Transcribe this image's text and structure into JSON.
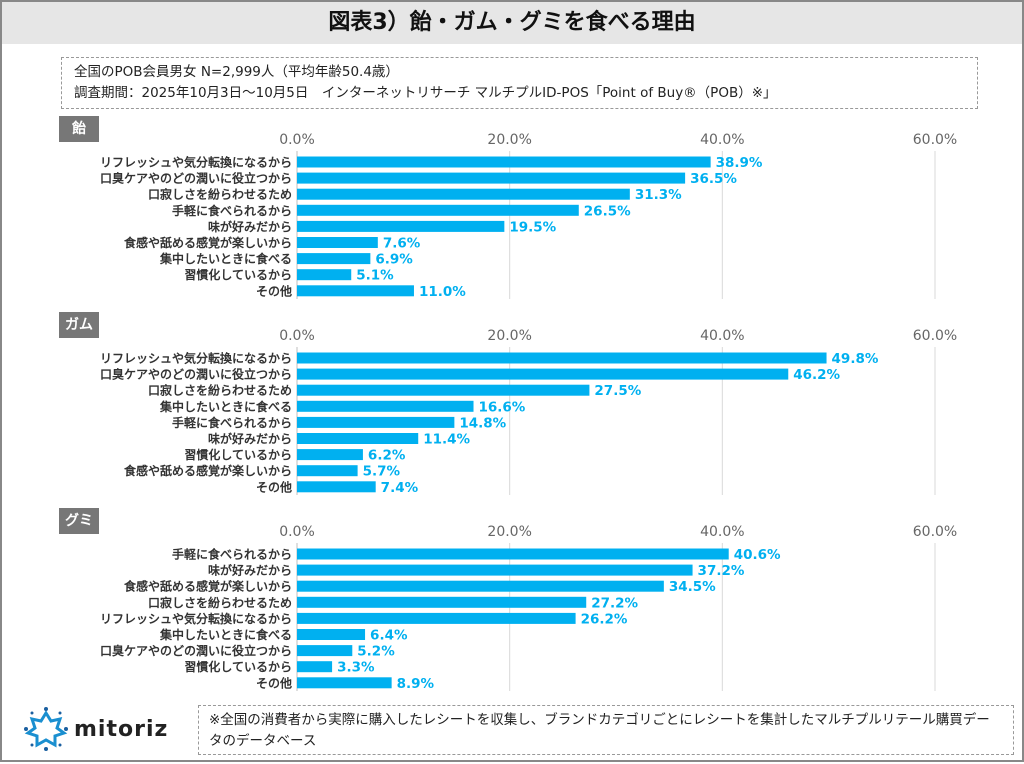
{
  "title": "図表3）飴・ガム・グミを食べる理由",
  "info": {
    "line1": "全国のPOB会員男女 N=2,999人（平均年齢50.4歳）",
    "line2": "調査期間：2025年10月3日～10月5日　インターネットリサーチ マルチプルID-POS「Point of Buy®（POB）※」"
  },
  "footer": {
    "logo": "mitoriz",
    "note": "※全国の消費者から実際に購入したレシートを収集し、ブランドカテゴリごとにレシートを集計したマルチプルリテール購買データのデータベース"
  },
  "colors": {
    "bar": "#00b0f0",
    "label": "#00b0f0",
    "tag": "#777777"
  },
  "chart_data": [
    {
      "type": "bar",
      "orientation": "horizontal",
      "title": "飴",
      "xlim": [
        0,
        60
      ],
      "ticks": [
        "0.0%",
        "20.0%",
        "40.0%",
        "60.0%"
      ],
      "grid": true,
      "categories": [
        "リフレッシュや気分転換になるから",
        "口臭ケアやのどの潤いに役立つから",
        "口寂しさを紛らわせるため",
        "手軽に食べられるから",
        "味が好みだから",
        "食感や舐める感覚が楽しいから",
        "集中したいときに食べる",
        "習慣化しているから",
        "その他"
      ],
      "values": [
        38.9,
        36.5,
        31.3,
        26.5,
        19.5,
        7.6,
        6.9,
        5.1,
        11.0
      ]
    },
    {
      "type": "bar",
      "orientation": "horizontal",
      "title": "ガム",
      "xlim": [
        0,
        60
      ],
      "ticks": [
        "0.0%",
        "20.0%",
        "40.0%",
        "60.0%"
      ],
      "grid": true,
      "categories": [
        "リフレッシュや気分転換になるから",
        "口臭ケアやのどの潤いに役立つから",
        "口寂しさを紛らわせるため",
        "集中したいときに食べる",
        "手軽に食べられるから",
        "味が好みだから",
        "習慣化しているから",
        "食感や舐める感覚が楽しいから",
        "その他"
      ],
      "values": [
        49.8,
        46.2,
        27.5,
        16.6,
        14.8,
        11.4,
        6.2,
        5.7,
        7.4
      ]
    },
    {
      "type": "bar",
      "orientation": "horizontal",
      "title": "グミ",
      "xlim": [
        0,
        60
      ],
      "ticks": [
        "0.0%",
        "20.0%",
        "40.0%",
        "60.0%"
      ],
      "grid": true,
      "categories": [
        "手軽に食べられるから",
        "味が好みだから",
        "食感や舐める感覚が楽しいから",
        "口寂しさを紛らわせるため",
        "リフレッシュや気分転換になるから",
        "集中したいときに食べる",
        "口臭ケアやのどの潤いに役立つから",
        "習慣化しているから",
        "その他"
      ],
      "values": [
        40.6,
        37.2,
        34.5,
        27.2,
        26.2,
        6.4,
        5.2,
        3.3,
        8.9
      ]
    }
  ]
}
